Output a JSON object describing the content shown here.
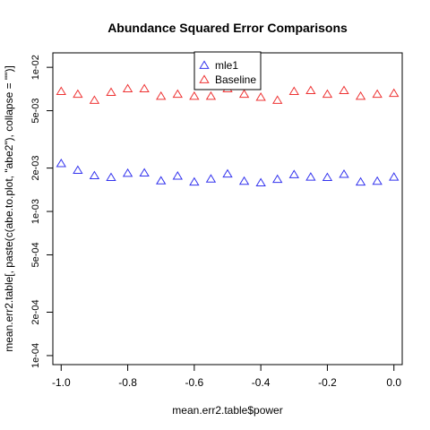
{
  "chart_data": {
    "type": "scatter",
    "title": "Abundance Squared Error Comparisons",
    "xlabel": "mean.err2.table$power",
    "ylabel": "mean.err2.table[, paste(c(abe.to.plot, \"abe2\"), collapse = \"\")]",
    "y_scale": "log",
    "xlim": [
      -1.025,
      0.025
    ],
    "ylim": [
      8.66e-05,
      0.0126
    ],
    "x_ticks": [
      -1.0,
      -0.8,
      -0.6,
      -0.4,
      -0.2,
      0.0
    ],
    "x_tick_labels": [
      "-1.0",
      "-0.8",
      "-0.6",
      "-0.4",
      "-0.2",
      "0.0"
    ],
    "y_ticks": [
      0.0001,
      0.0002,
      0.0005,
      0.001,
      0.002,
      0.005,
      0.01
    ],
    "y_tick_labels": [
      "1e-04",
      "2e-04",
      "5e-04",
      "1e-03",
      "2e-03",
      "5e-03",
      "1e-02"
    ],
    "legend_position": "top-center",
    "grid": false,
    "marker": "triangle-open",
    "x": [
      -1.0,
      -0.95,
      -0.9,
      -0.85,
      -0.8,
      -0.75,
      -0.7,
      -0.65,
      -0.6,
      -0.55,
      -0.5,
      -0.45,
      -0.4,
      -0.35,
      -0.3,
      -0.25,
      -0.2,
      -0.15,
      -0.1,
      -0.05,
      0.0
    ],
    "series": [
      {
        "name": "mle1",
        "color": "#3333ee",
        "values": [
          0.00215,
          0.00193,
          0.00177,
          0.00172,
          0.00184,
          0.00185,
          0.00163,
          0.00176,
          0.0016,
          0.00168,
          0.00182,
          0.00162,
          0.00158,
          0.00167,
          0.0018,
          0.00173,
          0.00172,
          0.00181,
          0.0016,
          0.00162,
          0.00173
        ]
      },
      {
        "name": "Baseline",
        "color": "#ee3333",
        "values": [
          0.0068,
          0.0065,
          0.0059,
          0.0067,
          0.0071,
          0.0071,
          0.0063,
          0.0065,
          0.0063,
          0.0063,
          0.0071,
          0.0065,
          0.0062,
          0.0059,
          0.0068,
          0.0069,
          0.0065,
          0.0069,
          0.0063,
          0.0065,
          0.0066
        ]
      }
    ]
  }
}
